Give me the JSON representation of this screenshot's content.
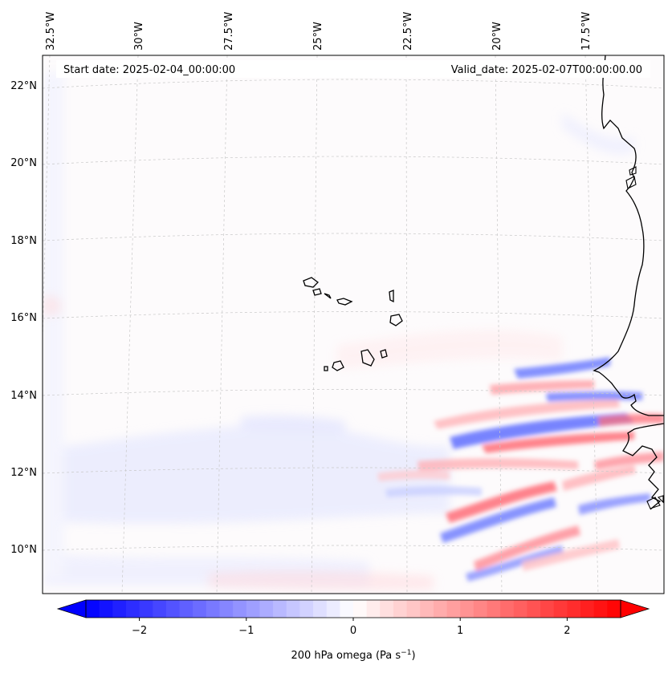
{
  "header": {
    "start_date": "Start date: 2025-02-04_00:00:00",
    "valid_date": "Valid_date: 2025-02-07T00:00:00.00"
  },
  "longitude_labels": [
    "32.5°W",
    "30°W",
    "27.5°W",
    "25°W",
    "22.5°W",
    "20°W",
    "17.5°W"
  ],
  "latitude_labels": [
    "22°N",
    "20°N",
    "18°N",
    "16°N",
    "14°N",
    "12°N",
    "10°N"
  ],
  "colorbar": {
    "ticks": [
      "−2",
      "−1",
      "0",
      "1",
      "2"
    ],
    "tick_values": [
      -2,
      -1,
      0,
      1,
      2
    ],
    "range": [
      -2.5,
      2.5
    ],
    "label_main": "200 hPa omega (Pa s",
    "label_sup": "−1",
    "label_end": ")",
    "colors": {
      "negative": "#0000ff",
      "zero": "#ffffff",
      "positive": "#ff0000"
    }
  },
  "map": {
    "variable": "200 hPa omega",
    "land_outline_color": "#000000",
    "gridline_color": "#c8c8c8"
  }
}
